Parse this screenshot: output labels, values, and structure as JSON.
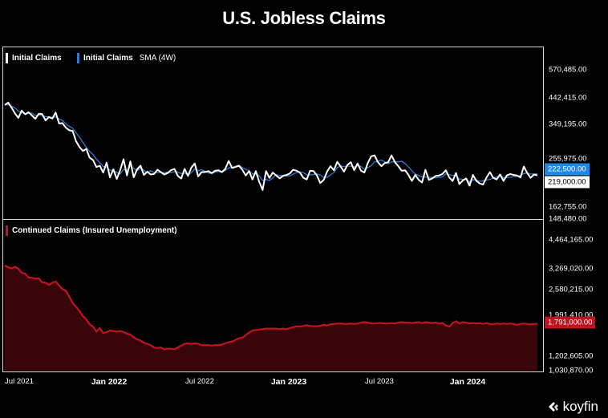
{
  "title": "U.S. Jobless Claims",
  "logo": {
    "text": "koyfin",
    "icon": "koyfin-logo-icon"
  },
  "colors": {
    "initial": "#ffffff",
    "sma": "#2f7bd8",
    "continued": "#c1121f",
    "continued_fill": "#3a0508",
    "badge_sma": "#1e88e5",
    "badge_initial": "#ffffff"
  },
  "chart_data": [
    {
      "type": "line",
      "title": "Initial Claims",
      "legend": [
        "Initial Claims",
        "Initial Claims",
        "SMA (4W)"
      ],
      "x_ticks": [
        "Jul 2021",
        "Jan 2022",
        "Jul 2022",
        "Jan 2023",
        "Jul 2023",
        "Jan 2024"
      ],
      "y_ticks": [
        "570,485.00",
        "442,415.00",
        "349,195.00",
        "255,975.00",
        "162,755.00",
        "148,480.00"
      ],
      "last_values": {
        "sma": "222,500.00",
        "initial": "219,000.00"
      },
      "series": [
        {
          "name": "Initial Claims",
          "values": [
            415000,
            424000,
            405000,
            385000,
            370000,
            395000,
            382000,
            389000,
            378000,
            367000,
            384000,
            383000,
            362000,
            373000,
            368000,
            388000,
            352000,
            353000,
            339000,
            331000,
            329000,
            300000,
            285000,
            275000,
            280000,
            259000,
            253000,
            237000,
            240000,
            225000,
            247000,
            215000,
            232000,
            212000,
            230000,
            255000,
            219000,
            250000,
            215000,
            232000,
            240000,
            220000,
            227000,
            221000,
            222000,
            231000,
            226000,
            221000,
            224000,
            230000,
            233000,
            218000,
            213000,
            233000,
            218000,
            236000,
            245000,
            217000,
            226000,
            226000,
            228000,
            224000,
            229000,
            230000,
            226000,
            233000,
            251000,
            235000,
            237000,
            240000,
            231000,
            219000,
            228000,
            211000,
            228000,
            206000,
            191000,
            228000,
            214000,
            225000,
            219000,
            213000,
            218000,
            220000,
            223000,
            231000,
            229000,
            225000,
            214000,
            211000,
            229000,
            228000,
            219000,
            204000,
            210000,
            227000,
            239000,
            230000,
            249000,
            238000,
            227000,
            242000,
            248000,
            230000,
            245000,
            229000,
            225000,
            246000,
            262000,
            264000,
            248000,
            239000,
            246000,
            248000,
            264000,
            248000,
            239000,
            229000,
            230000,
            220000,
            208000,
            220000,
            210000,
            205000,
            231000,
            210000,
            213000,
            218000,
            219000,
            222000,
            230000,
            215000,
            208000,
            224000,
            202000,
            209000,
            213000,
            199000,
            220000,
            208000,
            203000,
            201000,
            215000,
            226000,
            214000,
            211000,
            221000,
            208000,
            219000,
            222000,
            220000,
            219000,
            215000,
            238000,
            224000,
            214000,
            221000,
            219000
          ]
        },
        {
          "name": "SMA (4W)",
          "values": [
            418000,
            416000,
            411000,
            404000,
            393000,
            388000,
            383000,
            385000,
            386000,
            378000,
            379000,
            378000,
            374000,
            373000,
            371000,
            373000,
            366000,
            362000,
            351000,
            343000,
            337000,
            324000,
            311000,
            297000,
            284000,
            274000,
            266000,
            255000,
            247000,
            238000,
            237000,
            230000,
            229000,
            225000,
            222000,
            232000,
            229000,
            239000,
            234000,
            229000,
            234000,
            230000,
            224000,
            229000,
            225000,
            225000,
            225000,
            225000,
            226000,
            225000,
            227000,
            226000,
            223000,
            224000,
            220000,
            225000,
            233000,
            229000,
            231000,
            228000,
            224000,
            223000,
            226000,
            227000,
            227000,
            229000,
            235000,
            236000,
            239000,
            241000,
            236000,
            232000,
            229000,
            222000,
            222000,
            218000,
            209000,
            211000,
            209000,
            214000,
            221000,
            218000,
            219000,
            218000,
            218000,
            222000,
            225000,
            226000,
            225000,
            220000,
            220000,
            221000,
            222000,
            220000,
            215000,
            215000,
            220000,
            225000,
            236000,
            239000,
            238000,
            239000,
            239000,
            237000,
            241000,
            238000,
            232000,
            236000,
            240000,
            249000,
            250000,
            253000,
            249000,
            244000,
            249000,
            249000,
            249000,
            250000,
            245000,
            237000,
            229000,
            222000,
            219000,
            216000,
            216000,
            215000,
            215000,
            214000,
            215000,
            216000,
            222000,
            221000,
            219000,
            219000,
            212000,
            211000,
            211000,
            206000,
            210000,
            210000,
            207000,
            208000,
            210000,
            211000,
            214000,
            216000,
            218000,
            214000,
            215000,
            215000,
            217000,
            217000,
            219000,
            223000,
            224000,
            222000,
            222000,
            222500
          ]
        }
      ]
    },
    {
      "type": "area",
      "title": "Continued Claims (Insured Unemployment)",
      "legend": [
        "Continued Claims (Insured Unemployment)"
      ],
      "y_ticks": [
        "4,464,165.00",
        "3,269,020.00",
        "2,580,215.00",
        "1,991,410.00",
        "1,202,605.00",
        "1,030,870.00"
      ],
      "last_value": "1,791,000.00",
      "series": [
        {
          "name": "Continued Claims",
          "values": [
            3390000,
            3320000,
            3280000,
            3340000,
            3270000,
            3120000,
            3090000,
            2960000,
            2950000,
            2920000,
            2930000,
            2800000,
            2790000,
            2720000,
            2790000,
            2830000,
            2700000,
            2600000,
            2550000,
            2400000,
            2250000,
            2170000,
            2080000,
            1970000,
            1900000,
            1780000,
            1730000,
            1630000,
            1700000,
            1600000,
            1620000,
            1650000,
            1640000,
            1630000,
            1640000,
            1620000,
            1590000,
            1570000,
            1520000,
            1480000,
            1460000,
            1420000,
            1400000,
            1380000,
            1340000,
            1330000,
            1340000,
            1310000,
            1320000,
            1320000,
            1310000,
            1340000,
            1370000,
            1400000,
            1410000,
            1400000,
            1410000,
            1400000,
            1380000,
            1380000,
            1380000,
            1370000,
            1380000,
            1380000,
            1390000,
            1410000,
            1430000,
            1440000,
            1470000,
            1500000,
            1510000,
            1560000,
            1610000,
            1650000,
            1660000,
            1670000,
            1680000,
            1690000,
            1690000,
            1690000,
            1690000,
            1680000,
            1690000,
            1680000,
            1700000,
            1720000,
            1740000,
            1730000,
            1750000,
            1760000,
            1750000,
            1740000,
            1740000,
            1750000,
            1770000,
            1760000,
            1780000,
            1790000,
            1800000,
            1800000,
            1790000,
            1790000,
            1800000,
            1790000,
            1800000,
            1820000,
            1830000,
            1820000,
            1800000,
            1800000,
            1810000,
            1810000,
            1800000,
            1800000,
            1810000,
            1800000,
            1820000,
            1830000,
            1820000,
            1820000,
            1810000,
            1820000,
            1830000,
            1810000,
            1830000,
            1820000,
            1810000,
            1820000,
            1800000,
            1810000,
            1760000,
            1730000,
            1810000,
            1850000,
            1800000,
            1830000,
            1820000,
            1800000,
            1810000,
            1800000,
            1810000,
            1790000,
            1810000,
            1790000,
            1780000,
            1800000,
            1790000,
            1800000,
            1790000,
            1800000,
            1790000,
            1770000,
            1790000,
            1800000,
            1790000,
            1780000,
            1790000,
            1791000
          ]
        }
      ]
    }
  ]
}
